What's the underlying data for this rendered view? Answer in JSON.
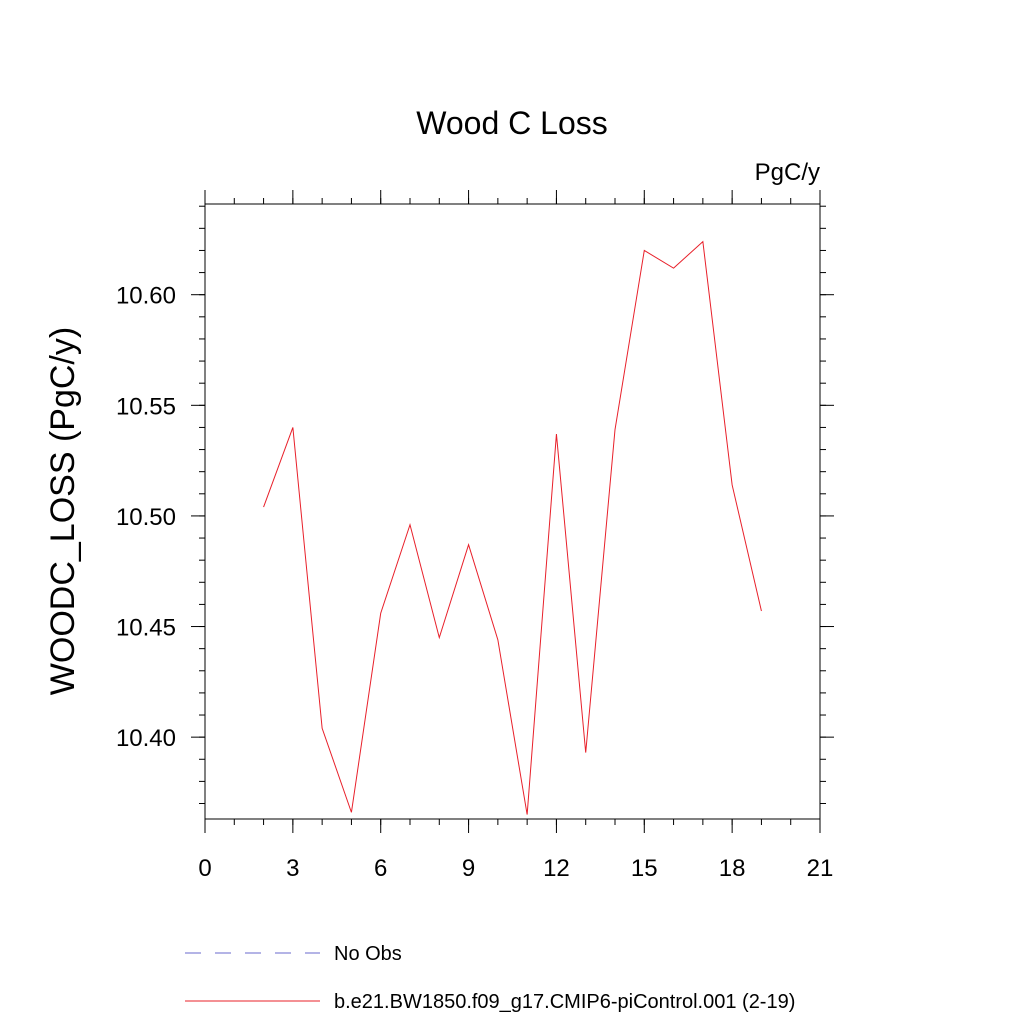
{
  "chart_data": {
    "type": "line",
    "title": "Wood C Loss",
    "units": "PgC/y",
    "ylabel": "WOODC_LOSS  (PgC/y)",
    "xlabel": "",
    "xlim": [
      0,
      21
    ],
    "ylim": [
      10.363,
      10.641
    ],
    "x_ticks": [
      0,
      3,
      6,
      9,
      12,
      15,
      18,
      21
    ],
    "y_ticks": [
      10.4,
      10.45,
      10.5,
      10.55,
      10.6
    ],
    "x_tick_labels": [
      "0",
      "3",
      "6",
      "9",
      "12",
      "15",
      "18",
      "21"
    ],
    "y_tick_labels": [
      "10.40",
      "10.45",
      "10.50",
      "10.55",
      "10.60"
    ],
    "grid": false,
    "legend_position": "bottom",
    "series": [
      {
        "name": "b.e21.BW1850.f09_g17.CMIP6-piControl.001 (2-19)",
        "color": "#e8202a",
        "style": "solid",
        "x": [
          2,
          3,
          4,
          5,
          6,
          7,
          8,
          9,
          10,
          11,
          12,
          13,
          14,
          15,
          16,
          17,
          18,
          19
        ],
        "y": [
          10.504,
          10.54,
          10.404,
          10.366,
          10.456,
          10.496,
          10.445,
          10.487,
          10.444,
          10.365,
          10.537,
          10.393,
          10.539,
          10.62,
          10.612,
          10.624,
          10.514,
          10.457
        ]
      }
    ],
    "legend": [
      {
        "label": "No Obs",
        "color": "#6a6acd",
        "style": "dashed"
      },
      {
        "label": "b.e21.BW1850.f09_g17.CMIP6-piControl.001 (2-19)",
        "color": "#e8202a",
        "style": "solid"
      }
    ]
  }
}
